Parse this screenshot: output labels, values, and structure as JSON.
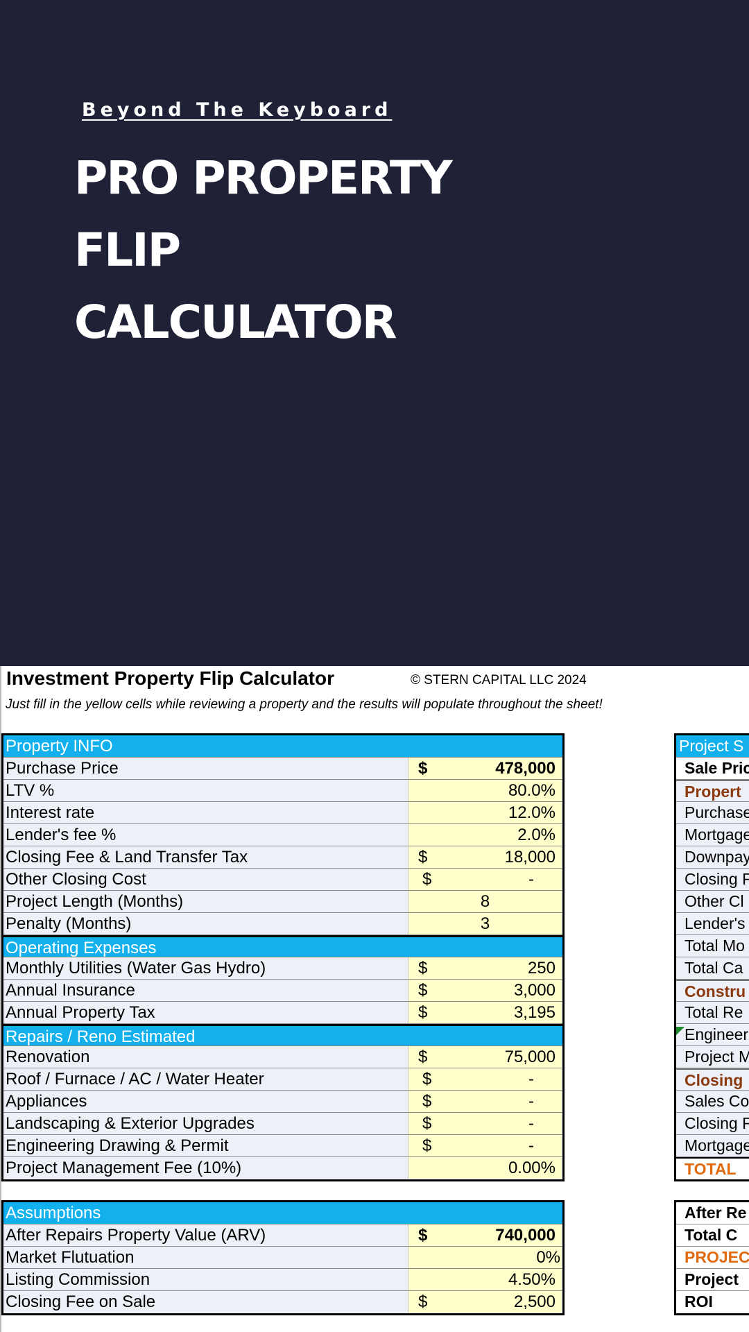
{
  "hero": {
    "brand": "Beyond The Keyboard",
    "title_lines": [
      "PRO PROPERTY",
      "FLIP",
      "CALCULATOR"
    ]
  },
  "sheet": {
    "title": "Investment Property Flip Calculator",
    "copyright": "© STERN CAPITAL LLC 2024",
    "instructions": "Just fill in the yellow cells while reviewing a property and the results will populate throughout the sheet!"
  },
  "property_info": {
    "header": "Property INFO",
    "rows": [
      {
        "label": "Purchase Price",
        "currency": "$",
        "value": "478,000"
      },
      {
        "label": "LTV %",
        "currency": "",
        "value": "80.0%"
      },
      {
        "label": "Interest rate",
        "currency": "",
        "value": "12.0%"
      },
      {
        "label": "Lender's fee %",
        "currency": "",
        "value": "2.0%"
      },
      {
        "label": "Closing Fee & Land Transfer Tax",
        "currency": "$",
        "value": "18,000"
      },
      {
        "label": "Other Closing Cost",
        "currency": "$",
        "value": "-"
      },
      {
        "label": "Project Length (Months)",
        "currency": "",
        "value": "8"
      },
      {
        "label": "Penalty (Months)",
        "currency": "",
        "value": "3"
      }
    ]
  },
  "operating_expenses": {
    "header": "Operating Expenses",
    "rows": [
      {
        "label": "Monthly Utilities (Water Gas Hydro)",
        "currency": "$",
        "value": "250"
      },
      {
        "label": "Annual Insurance",
        "currency": "$",
        "value": "3,000"
      },
      {
        "label": "Annual Property Tax",
        "currency": "$",
        "value": "3,195"
      }
    ]
  },
  "repairs": {
    "header": "Repairs / Reno Estimated",
    "rows": [
      {
        "label": "Renovation",
        "currency": "$",
        "value": "75,000"
      },
      {
        "label": "Roof / Furnace / AC / Water Heater",
        "currency": "$",
        "value": "-"
      },
      {
        "label": "Appliances",
        "currency": "$",
        "value": "-"
      },
      {
        "label": "Landscaping & Exterior Upgrades",
        "currency": "$",
        "value": "-"
      },
      {
        "label": "Engineering Drawing & Permit",
        "currency": "$",
        "value": "-"
      },
      {
        "label": "Project Management Fee (10%)",
        "currency": "",
        "value": "0.00%"
      }
    ]
  },
  "assumptions": {
    "header": "Assumptions",
    "rows": [
      {
        "label": "After Repairs Property Value (ARV)",
        "currency": "$",
        "value": "740,000"
      },
      {
        "label": "Market Flutuation",
        "currency": "",
        "value": "0%"
      },
      {
        "label": "Listing Commission",
        "currency": "",
        "value": "4.50%"
      },
      {
        "label": "Closing Fee on Sale",
        "currency": "$",
        "value": "2,500"
      }
    ]
  },
  "project_summary": {
    "header": "Project S",
    "rows": [
      "Sale Pric",
      "Propert",
      "Purchase",
      "Mortgage",
      "Downpay",
      "Closing F",
      "Other Cl",
      "Lender's",
      "Total Mo",
      "Total Ca",
      "Constru",
      "Total Re",
      "Engineer",
      "Project M",
      "Closing",
      "Sales Co",
      "Closing F",
      "Mortgage",
      "TOTAL"
    ]
  },
  "results": {
    "rows": [
      "After Re",
      "Total C",
      "PROJEC",
      "Project",
      "ROI"
    ]
  }
}
